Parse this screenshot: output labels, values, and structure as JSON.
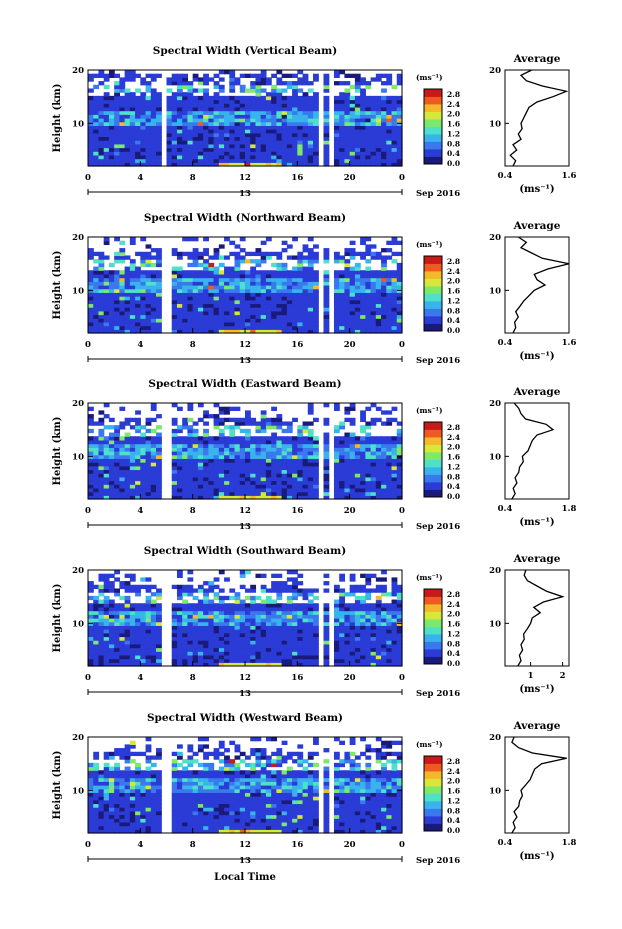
{
  "common": {
    "y_label": "Height (km)",
    "x_label": "Local Time",
    "date_label": "Sep 2016",
    "day_label": "13",
    "x_ticks": [
      "0",
      "4",
      "8",
      "12",
      "16",
      "20",
      "0"
    ],
    "y_ticks": [
      "20",
      "10"
    ],
    "colorbar_unit": "(ms⁻¹)",
    "colorbar_ticks": [
      "2.8",
      "2.4",
      "2.0",
      "1.6",
      "1.2",
      "0.8",
      "0.4",
      "0.0"
    ],
    "avg_title": "Average",
    "avg_unit": "(ms⁻¹)",
    "colormap": [
      "#1a1a7a",
      "#2b3bd6",
      "#3a78ee",
      "#39b3ee",
      "#4ee0c8",
      "#7ee86a",
      "#d8e83a",
      "#f5b82a",
      "#ee5a22",
      "#c81a1a"
    ]
  },
  "chart_data": [
    {
      "type": "heatmap",
      "title": "Spectral Width (Vertical Beam)",
      "xlim": [
        0,
        24
      ],
      "ylim": [
        2,
        20
      ],
      "gaps_hours": [
        [
          5.7,
          6.2
        ],
        [
          17.6,
          18.0
        ],
        [
          18.6,
          18.9
        ]
      ],
      "avg_profile": {
        "type": "line",
        "title": "Average",
        "xlabel": "(ms⁻¹)",
        "xlim": [
          0.4,
          1.6
        ],
        "x_ticks": [
          "0.4",
          "1.6"
        ],
        "heights_km": [
          2,
          3,
          4,
          5,
          6,
          7,
          8,
          9,
          10,
          11,
          12,
          13,
          14,
          15,
          16,
          17,
          18,
          19,
          20
        ],
        "values": [
          0.55,
          0.6,
          0.5,
          0.62,
          0.55,
          0.7,
          0.65,
          0.72,
          0.7,
          0.75,
          0.8,
          0.85,
          1.0,
          1.3,
          1.55,
          1.1,
          0.8,
          0.7,
          0.9
        ]
      }
    },
    {
      "type": "heatmap",
      "title": "Spectral Width (Northward Beam)",
      "xlim": [
        0,
        24
      ],
      "ylim": [
        2,
        20
      ],
      "gaps_hours": [
        [
          5.5,
          5.8
        ],
        [
          6.0,
          6.3
        ],
        [
          17.6,
          17.9
        ],
        [
          18.4,
          18.7
        ]
      ],
      "avg_profile": {
        "type": "line",
        "title": "Average",
        "xlabel": "(ms⁻¹)",
        "xlim": [
          0.4,
          1.6
        ],
        "x_ticks": [
          "0.4",
          "1.6"
        ],
        "heights_km": [
          2,
          3,
          4,
          5,
          6,
          7,
          8,
          9,
          10,
          11,
          12,
          13,
          14,
          15,
          16,
          17,
          18,
          19,
          20
        ],
        "values": [
          0.55,
          0.6,
          0.58,
          0.65,
          0.6,
          0.68,
          0.75,
          0.85,
          0.95,
          1.15,
          1.0,
          0.95,
          1.2,
          1.6,
          1.1,
          0.9,
          0.7,
          0.8,
          0.65
        ]
      }
    },
    {
      "type": "heatmap",
      "title": "Spectral Width (Eastward Beam)",
      "xlim": [
        0,
        24
      ],
      "ylim": [
        2,
        20
      ],
      "gaps_hours": [
        [
          5.6,
          5.9
        ],
        [
          6.1,
          6.4
        ],
        [
          17.6,
          17.9
        ],
        [
          18.4,
          18.7
        ]
      ],
      "avg_profile": {
        "type": "line",
        "title": "Average",
        "xlabel": "(ms⁻¹)",
        "xlim": [
          0.4,
          1.8
        ],
        "x_ticks": [
          "0.4",
          "1.8"
        ],
        "heights_km": [
          2,
          3,
          4,
          5,
          6,
          7,
          8,
          9,
          10,
          11,
          12,
          13,
          14,
          15,
          16,
          17,
          18,
          19,
          20
        ],
        "values": [
          0.55,
          0.62,
          0.58,
          0.66,
          0.62,
          0.7,
          0.72,
          0.8,
          0.78,
          0.9,
          0.95,
          1.0,
          1.1,
          1.45,
          1.3,
          0.85,
          0.75,
          0.7,
          0.6
        ]
      }
    },
    {
      "type": "heatmap",
      "title": "Spectral Width (Southward Beam)",
      "xlim": [
        0,
        24
      ],
      "ylim": [
        2,
        20
      ],
      "gaps_hours": [
        [
          5.5,
          5.8
        ],
        [
          6.0,
          6.3
        ],
        [
          17.6,
          17.9
        ],
        [
          18.4,
          18.7
        ]
      ],
      "avg_profile": {
        "type": "line",
        "title": "Average",
        "xlabel": "(ms⁻¹)",
        "xlim": [
          0.2,
          2.2
        ],
        "x_ticks": [
          "1",
          "2"
        ],
        "heights_km": [
          2,
          3,
          4,
          5,
          6,
          7,
          8,
          9,
          10,
          11,
          12,
          13,
          14,
          15,
          16,
          17,
          18,
          19,
          20
        ],
        "values": [
          0.6,
          0.7,
          0.65,
          0.75,
          0.7,
          0.8,
          0.78,
          0.9,
          1.0,
          1.05,
          1.3,
          1.1,
          1.4,
          2.0,
          1.5,
          1.2,
          0.9,
          0.8,
          0.85
        ]
      }
    },
    {
      "type": "heatmap",
      "title": "Spectral Width (Westward Beam)",
      "xlim": [
        0,
        24
      ],
      "ylim": [
        2,
        20
      ],
      "gaps_hours": [
        [
          5.6,
          5.9
        ],
        [
          6.1,
          6.4
        ],
        [
          17.6,
          17.9
        ],
        [
          18.4,
          18.7
        ]
      ],
      "avg_profile": {
        "type": "line",
        "title": "Average",
        "xlabel": "(ms⁻¹)",
        "xlim": [
          0.4,
          1.8
        ],
        "x_ticks": [
          "0.4",
          "1.8"
        ],
        "heights_km": [
          2,
          3,
          4,
          5,
          6,
          7,
          8,
          9,
          10,
          11,
          12,
          13,
          14,
          15,
          16,
          17,
          18,
          19,
          20
        ],
        "values": [
          0.55,
          0.62,
          0.58,
          0.66,
          0.6,
          0.7,
          0.72,
          0.78,
          0.75,
          0.85,
          0.95,
          1.0,
          1.05,
          1.2,
          1.75,
          1.0,
          0.7,
          0.55,
          0.6
        ]
      }
    }
  ]
}
